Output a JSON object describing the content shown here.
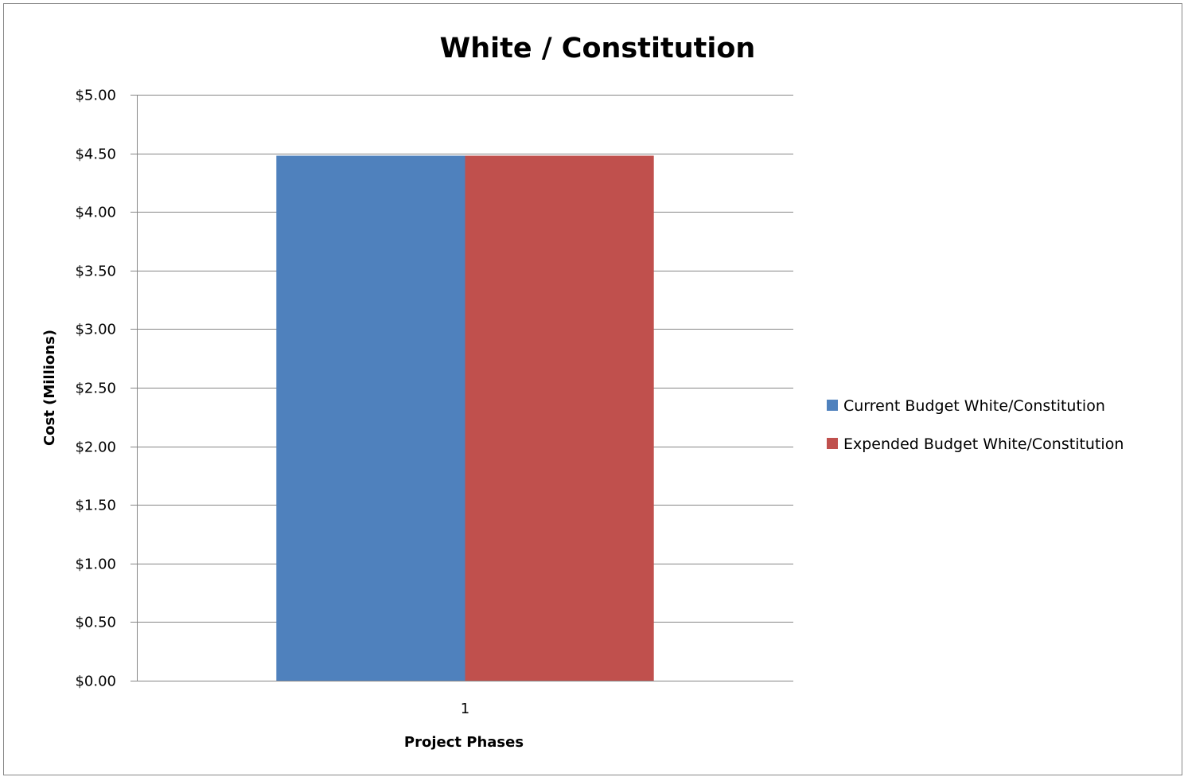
{
  "chart_data": {
    "type": "bar",
    "title": "White / Constitution",
    "xlabel": "Project Phases",
    "ylabel": "Cost (Millions)",
    "categories": [
      "1"
    ],
    "series": [
      {
        "name": "Current Budget White/Constitution",
        "values": [
          4.48
        ],
        "color": "#4F81BD"
      },
      {
        "name": "Expended Budget White/Constitution",
        "values": [
          4.48
        ],
        "color": "#C0504D"
      }
    ],
    "ylim": [
      0,
      5
    ],
    "y_ticks": [
      "$0.00",
      "$0.50",
      "$1.00",
      "$1.50",
      "$2.00",
      "$2.50",
      "$3.00",
      "$3.50",
      "$4.00",
      "$4.50",
      "$5.00"
    ],
    "grid": true,
    "legend_position": "right",
    "colors": {
      "gridline": "#868686",
      "axis": "#868686"
    }
  }
}
